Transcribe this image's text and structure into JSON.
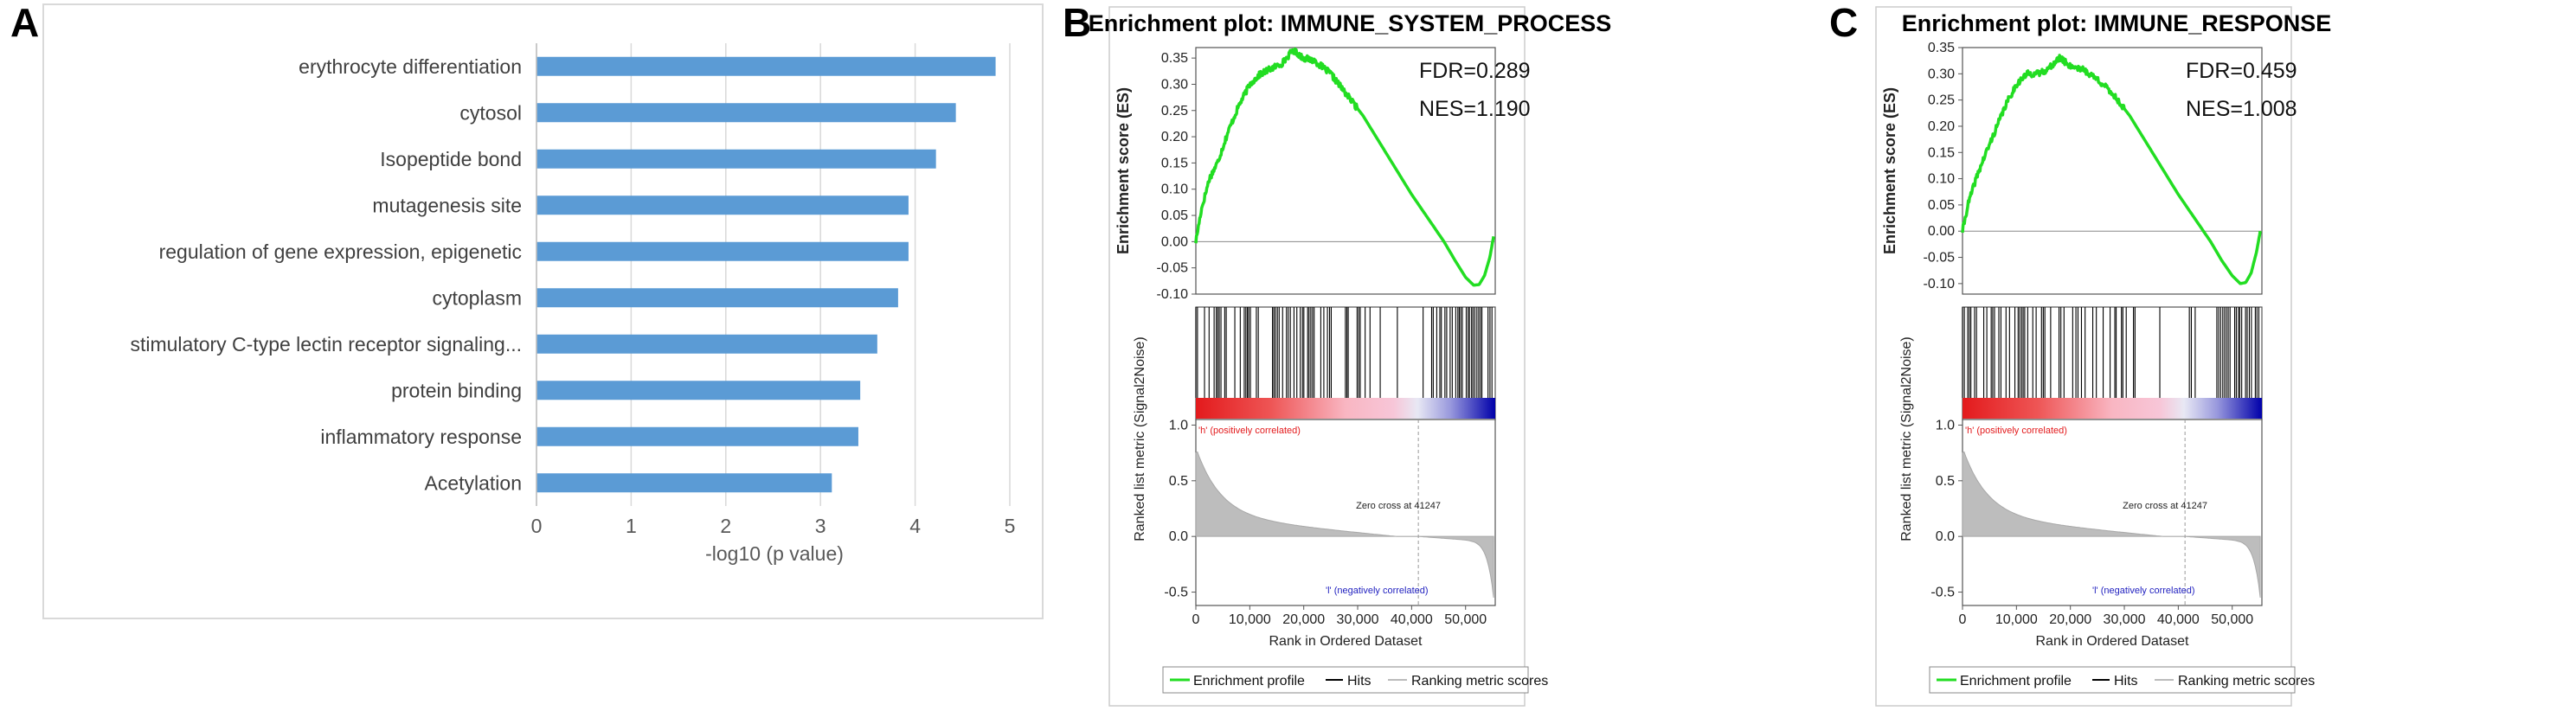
{
  "panels": {
    "a": "A",
    "b": "B",
    "c": "C"
  },
  "chart_data": [
    {
      "type": "bar",
      "orientation": "horizontal",
      "categories": [
        "erythrocyte differentiation",
        "cytosol",
        "Isopeptide bond",
        "mutagenesis site",
        "regulation of gene expression, epigenetic",
        "cytoplasm",
        "stimulatory C-type lectin receptor signaling...",
        "protein binding",
        "inflammatory response",
        "Acetylation"
      ],
      "values": [
        4.85,
        4.43,
        4.22,
        3.93,
        3.93,
        3.82,
        3.6,
        3.42,
        3.4,
        3.12
      ],
      "xlabel": "-log10 (p value)",
      "xlim": [
        0,
        5
      ],
      "xticks": [
        0,
        1,
        2,
        3,
        4,
        5
      ],
      "grid": true,
      "bar_color": "#5b9bd5"
    },
    {
      "type": "line",
      "title": "Enrichment plot: IMMUNE_SYSTEM_PROCESS",
      "ylabel": "Enrichment score (ES)",
      "ylim": [
        -0.1,
        0.37
      ],
      "yticks": [
        "0.35",
        "0.30",
        "0.25",
        "0.20",
        "0.15",
        "0.10",
        "0.05",
        "0.00",
        "-0.05",
        "-0.10"
      ],
      "stats": [
        "FDR=0.289",
        "NES=1.190"
      ],
      "es_curve": {
        "x": [
          0,
          1000,
          2500,
          4000,
          6000,
          8000,
          10000,
          12000,
          14000,
          16000,
          18000,
          20000,
          22000,
          25000,
          28000,
          31000,
          34000,
          37000,
          40000,
          43000,
          46000,
          48000,
          50000,
          51500,
          52500,
          53500,
          54500,
          55200
        ],
        "y": [
          0.0,
          0.06,
          0.12,
          0.15,
          0.21,
          0.26,
          0.3,
          0.32,
          0.33,
          0.34,
          0.365,
          0.35,
          0.345,
          0.32,
          0.28,
          0.24,
          0.19,
          0.14,
          0.09,
          0.045,
          0.0,
          -0.035,
          -0.068,
          -0.083,
          -0.082,
          -0.065,
          -0.03,
          0.01
        ]
      },
      "ranked_ylabel": "Ranked list metric (Signal2Noise)",
      "ranked_yticks": [
        "1.0",
        "0.5",
        "0.0",
        "-0.5"
      ],
      "ranked_ylim": [
        -0.62,
        1.05
      ],
      "pos_label": "'h' (positively correlated)",
      "neg_label": "'l' (negatively correlated)",
      "zero_cross": "Zero cross at 41247",
      "zero_cross_rank": 41247,
      "xlabel": "Rank in Ordered Dataset",
      "xlim": [
        0,
        55500
      ],
      "xticks": [
        "0",
        "10,000",
        "20,000",
        "30,000",
        "40,000",
        "50,000"
      ],
      "legend": [
        "Enrichment profile",
        "Hits",
        "Ranking metric scores"
      ],
      "colors": {
        "es": "#22dd22",
        "pos": "#e31a1c",
        "neg": "#1f1fbf"
      }
    },
    {
      "type": "line",
      "title": "Enrichment plot: IMMUNE_RESPONSE",
      "ylabel": "Enrichment score (ES)",
      "ylim": [
        -0.12,
        0.35
      ],
      "yticks": [
        "0.35",
        "0.30",
        "0.25",
        "0.20",
        "0.15",
        "0.10",
        "0.05",
        "0.00",
        "-0.05",
        "-0.10"
      ],
      "stats": [
        "FDR=0.459",
        "NES=1.008"
      ],
      "es_curve": {
        "x": [
          0,
          1000,
          2500,
          4000,
          6000,
          8000,
          10000,
          12000,
          14000,
          16000,
          18000,
          20000,
          22000,
          25000,
          28000,
          31000,
          34000,
          37000,
          40000,
          43000,
          46000,
          48000,
          50000,
          51500,
          52500,
          53500,
          54500,
          55200
        ],
        "y": [
          0.0,
          0.05,
          0.1,
          0.14,
          0.19,
          0.24,
          0.28,
          0.3,
          0.3,
          0.31,
          0.33,
          0.315,
          0.31,
          0.29,
          0.26,
          0.22,
          0.17,
          0.12,
          0.07,
          0.025,
          -0.02,
          -0.055,
          -0.085,
          -0.1,
          -0.098,
          -0.08,
          -0.04,
          0.0
        ]
      },
      "ranked_ylabel": "Ranked list metric (Signal2Noise)",
      "ranked_yticks": [
        "1.0",
        "0.5",
        "0.0",
        "-0.5"
      ],
      "ranked_ylim": [
        -0.62,
        1.05
      ],
      "pos_label": "'h' (positively correlated)",
      "neg_label": "'l' (negatively correlated)",
      "zero_cross": "Zero cross at 41247",
      "zero_cross_rank": 41247,
      "xlabel": "Rank in Ordered Dataset",
      "xlim": [
        0,
        55500
      ],
      "xticks": [
        "0",
        "10,000",
        "20,000",
        "30,000",
        "40,000",
        "50,000"
      ],
      "legend": [
        "Enrichment profile",
        "Hits",
        "Ranking metric scores"
      ],
      "colors": {
        "es": "#22dd22",
        "pos": "#e31a1c",
        "neg": "#1f1fbf"
      }
    }
  ]
}
